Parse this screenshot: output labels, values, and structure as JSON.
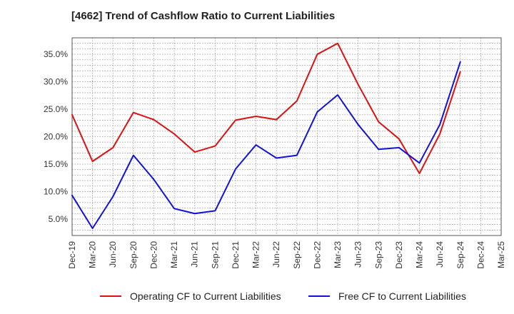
{
  "chart_data": {
    "type": "line",
    "title": "[4662]  Trend of Cashflow Ratio to Current Liabilities",
    "categories": [
      "Dec-19",
      "Mar-20",
      "Jun-20",
      "Sep-20",
      "Dec-20",
      "Mar-21",
      "Jun-21",
      "Sep-21",
      "Dec-21",
      "Mar-22",
      "Jun-22",
      "Sep-22",
      "Dec-22",
      "Mar-23",
      "Jun-23",
      "Sep-23",
      "Dec-23",
      "Mar-24",
      "Jun-24",
      "Sep-24",
      "Dec-24",
      "Mar-25"
    ],
    "series": [
      {
        "name": "Operating CF to Current Liabilities",
        "color": "#dd1111",
        "values": [
          24.0,
          15.5,
          18.0,
          24.4,
          23.1,
          20.5,
          17.2,
          18.3,
          23.0,
          23.7,
          23.1,
          26.5,
          35.0,
          37.0,
          29.5,
          22.7,
          19.6,
          13.3,
          20.5,
          31.8,
          null,
          null
        ]
      },
      {
        "name": "Free CF to Current Liabilities",
        "color": "#1111dd",
        "values": [
          9.3,
          3.3,
          9.1,
          16.6,
          12.2,
          6.9,
          6.0,
          6.5,
          14.1,
          18.5,
          16.1,
          16.6,
          24.5,
          27.6,
          22.2,
          17.7,
          18.0,
          15.2,
          22.2,
          33.6,
          null,
          null
        ]
      }
    ],
    "y_ticks": [
      "5.0%",
      "10.0%",
      "15.0%",
      "20.0%",
      "25.0%",
      "30.0%",
      "35.0%"
    ],
    "y_tick_values": [
      5,
      10,
      15,
      20,
      25,
      30,
      35
    ],
    "ylim": [
      2,
      38
    ],
    "grid": true,
    "legend_position": "bottom"
  }
}
